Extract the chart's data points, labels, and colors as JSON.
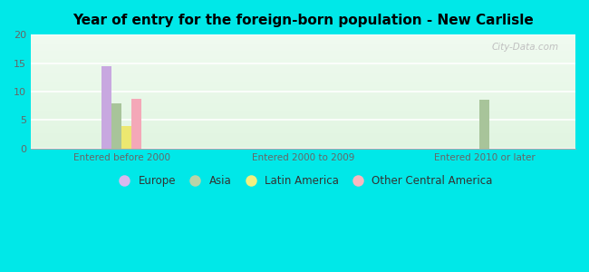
{
  "title": "Year of entry for the foreign-born population - New Carlisle",
  "groups": [
    "Entered before 2000",
    "Entered 2000 to 2009",
    "Entered 2010 or later"
  ],
  "series": [
    "Europe",
    "Asia",
    "Latin America",
    "Other Central America"
  ],
  "values": [
    [
      14.5,
      8.0,
      4.0,
      8.8
    ],
    [
      0,
      0,
      0,
      0
    ],
    [
      0,
      8.5,
      0,
      0
    ]
  ],
  "colors": [
    "#c8a8e0",
    "#a8c49a",
    "#ece870",
    "#f4a8b8"
  ],
  "legend_colors": [
    "#d8b8ee",
    "#b8d4a8",
    "#f0f080",
    "#f8b8c0"
  ],
  "ylim": [
    0,
    20
  ],
  "yticks": [
    0,
    5,
    10,
    15,
    20
  ],
  "bg_outer": "#00e8e8",
  "bg_top": "#e8f8f0",
  "bg_bottom": "#d0f0e0",
  "watermark": "City-Data.com",
  "bar_width": 0.055,
  "group_centers": [
    0.17,
    0.5,
    0.83
  ]
}
